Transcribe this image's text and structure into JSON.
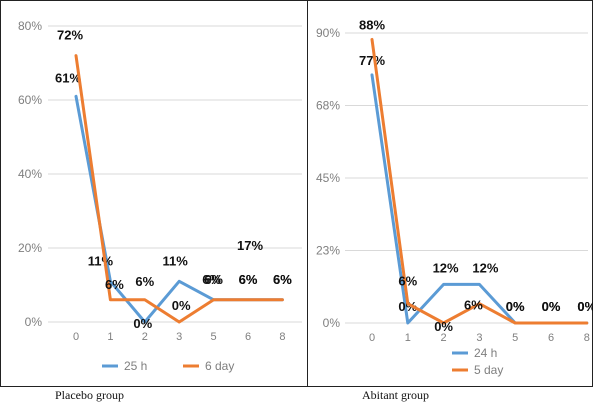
{
  "colors": {
    "series_a": "#5b9bd5",
    "series_b": "#ed7d31",
    "axis_text": "#7f7f7f",
    "grid": "#d9d9d9",
    "label_text": "#111111"
  },
  "chart_data": [
    {
      "type": "line",
      "caption": "Placebo group",
      "categories": [
        "0",
        "1",
        "2",
        "3",
        "5",
        "6",
        "8"
      ],
      "y_ticks": [
        "0%",
        "20%",
        "40%",
        "60%",
        "80%"
      ],
      "ylim": [
        0,
        80
      ],
      "grid": true,
      "legend_position": "bottom",
      "series": [
        {
          "name": "25 h",
          "values": [
            61,
            11,
            0,
            11,
            6,
            6,
            6
          ],
          "labels": [
            "61%",
            "11%",
            "0%",
            "11%",
            "6%",
            "6%",
            "6%"
          ]
        },
        {
          "name": "6 day",
          "values": [
            72,
            6,
            6,
            0,
            6,
            6,
            6
          ],
          "labels": [
            "72%",
            "6%",
            "6%",
            "0%",
            "6%",
            "6%",
            "6%"
          ]
        }
      ],
      "annotations": [
        "17%"
      ]
    },
    {
      "type": "line",
      "caption": "Abitant group",
      "categories": [
        "0",
        "1",
        "2",
        "3",
        "5",
        "6",
        "8"
      ],
      "y_ticks": [
        "0%",
        "23%",
        "45%",
        "68%",
        "90%"
      ],
      "ylim": [
        0,
        90
      ],
      "grid": true,
      "legend_position": "bottom",
      "series": [
        {
          "name": "24 h",
          "values": [
            77,
            0,
            12,
            12,
            0,
            0,
            0
          ],
          "labels": [
            "77%",
            "0%",
            "12%",
            "12%",
            "0%",
            "0%",
            "0%"
          ]
        },
        {
          "name": "5 day",
          "values": [
            88,
            6,
            0,
            6,
            0,
            0,
            0
          ],
          "labels": [
            "88%",
            "6%",
            "0%",
            "6%",
            "0%",
            "0%",
            "0%"
          ]
        }
      ]
    }
  ]
}
